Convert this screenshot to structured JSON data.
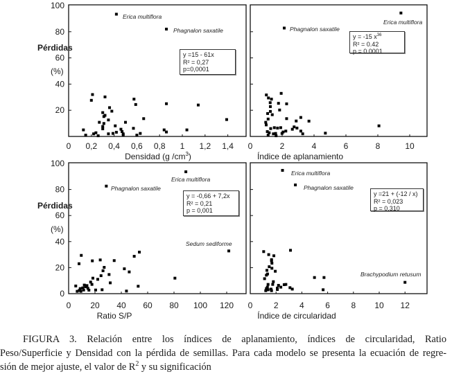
{
  "y_axis": {
    "title": "Pérdidas",
    "unit": "(%)"
  },
  "chart_data": [
    {
      "type": "scatter",
      "xlabel": "Densidad (g /cm",
      "xlabel_sup": "3",
      "xlabel_end": ")",
      "xticks": [
        "0",
        "0,2",
        "0,4",
        "0,6",
        "0,8",
        "1",
        "1,2",
        "1,4"
      ],
      "xtick_values": [
        0,
        0.2,
        0.4,
        0.6,
        0.8,
        1,
        1.2,
        1.4
      ],
      "yticks": [
        "20",
        "40",
        "60",
        "80",
        "100"
      ],
      "ylim": [
        0,
        100
      ],
      "equation": {
        "line1": "y =15 - 61x",
        "exp": "",
        "r2": "R² = 0,27",
        "p": "p=0,0001"
      },
      "annotations": [
        "Erica multiflora",
        "Phagnalon saxatile"
      ],
      "points": [
        [
          0.42,
          93.4
        ],
        [
          0.86,
          82
        ],
        [
          0.21,
          32
        ],
        [
          0.32,
          30.2
        ],
        [
          0.2,
          27.6
        ],
        [
          0.575,
          28.5
        ],
        [
          0.59,
          24.4
        ],
        [
          0.86,
          25
        ],
        [
          1.14,
          24
        ],
        [
          1.39,
          12.9
        ],
        [
          0.36,
          22
        ],
        [
          0.38,
          19.3
        ],
        [
          0.3,
          18.2
        ],
        [
          0.32,
          16.1
        ],
        [
          0.31,
          15.2
        ],
        [
          0.27,
          10.8
        ],
        [
          0.31,
          9.9
        ],
        [
          0.35,
          12.6
        ],
        [
          0.41,
          8.1
        ],
        [
          0.3,
          7.6
        ],
        [
          0.3,
          5.8
        ],
        [
          0.13,
          5
        ],
        [
          0.5,
          10.8
        ],
        [
          0.66,
          13.6
        ],
        [
          0.57,
          6.2
        ],
        [
          0.46,
          5.5
        ],
        [
          0.47,
          3.7
        ],
        [
          0.48,
          2
        ],
        [
          0.84,
          5
        ],
        [
          0.86,
          3.4
        ],
        [
          1.04,
          5
        ],
        [
          0.42,
          3.2
        ],
        [
          0.39,
          2.3
        ],
        [
          0.35,
          2
        ],
        [
          0.24,
          2.8
        ],
        [
          0.22,
          2
        ],
        [
          0.15,
          1
        ],
        [
          0.26,
          0.5
        ],
        [
          0.48,
          1
        ],
        [
          0.63,
          2.3
        ],
        [
          0.6,
          1
        ]
      ]
    },
    {
      "type": "scatter",
      "xlabel": "Índice de aplanamiento",
      "xlabel_sup": "",
      "xlabel_end": "",
      "xticks": [
        "0",
        "2",
        "4",
        "6",
        "8",
        "10"
      ],
      "xtick_values": [
        0,
        2,
        4,
        6,
        8,
        10
      ],
      "yticks": [],
      "ylim": [
        0,
        100
      ],
      "equation": {
        "line1": "y = -15 x",
        "exp": "36",
        "r2": "R² = 0.42",
        "p": "p = 0.0001"
      },
      "annotations": [
        "Phagnalon saxatile",
        "Erica multiflora"
      ],
      "points": [
        [
          9.45,
          94.3
        ],
        [
          2.13,
          82.8
        ],
        [
          1.01,
          31.7
        ],
        [
          1.14,
          29.4
        ],
        [
          1.33,
          28.5
        ],
        [
          1.94,
          32.9
        ],
        [
          1.25,
          25.8
        ],
        [
          1.77,
          25.3
        ],
        [
          2.28,
          24.9
        ],
        [
          1.26,
          22.8
        ],
        [
          1.84,
          20.2
        ],
        [
          1.26,
          19.1
        ],
        [
          1.09,
          17.5
        ],
        [
          1.38,
          16.6
        ],
        [
          1.12,
          13.3
        ],
        [
          2.28,
          13.6
        ],
        [
          3.17,
          14.5
        ],
        [
          3.68,
          11.7
        ],
        [
          2.88,
          11.8
        ],
        [
          0.97,
          10.8
        ],
        [
          1.0,
          8.8
        ],
        [
          8.07,
          8.1
        ],
        [
          1.51,
          6.7
        ],
        [
          1.71,
          6.4
        ],
        [
          1.28,
          6
        ],
        [
          1.91,
          6.7
        ],
        [
          2.75,
          7.3
        ],
        [
          2.93,
          6.4
        ],
        [
          2.64,
          5.5
        ],
        [
          3.17,
          4.1
        ],
        [
          1.07,
          3.7
        ],
        [
          1.19,
          2.8
        ],
        [
          1.59,
          2.3
        ],
        [
          2.06,
          3.4
        ],
        [
          2.23,
          4.1
        ],
        [
          1.99,
          2.3
        ],
        [
          1.12,
          1
        ],
        [
          1.62,
          0.5
        ],
        [
          3.29,
          2
        ],
        [
          4.71,
          2.5
        ],
        [
          1.45,
          2
        ]
      ]
    },
    {
      "type": "scatter",
      "xlabel": "Ratio S/P",
      "xlabel_sup": "",
      "xlabel_end": "",
      "xticks": [
        "0",
        "20",
        "40",
        "60",
        "80",
        "100",
        "120"
      ],
      "xtick_values": [
        0,
        20,
        40,
        60,
        80,
        100,
        120
      ],
      "yticks": [
        "0",
        "20",
        "40",
        "60",
        "80",
        "100"
      ],
      "ylim": [
        0,
        100
      ],
      "equation": {
        "line1": "y = -0,66 + 7,2x",
        "exp": "",
        "r2": "R² = 0,21",
        "p": "p = 0,001"
      },
      "annotations": [
        "Erica multiflora",
        "Phagnalon saxatile",
        "Sedum  sediforme"
      ],
      "points": [
        [
          89,
          93.6
        ],
        [
          28.6,
          82.6
        ],
        [
          121.6,
          32.8
        ],
        [
          53.7,
          31.9
        ],
        [
          49.8,
          28.7
        ],
        [
          9.6,
          29.4
        ],
        [
          24,
          25.9
        ],
        [
          34.6,
          25.4
        ],
        [
          18,
          25.2
        ],
        [
          7.9,
          23
        ],
        [
          42.3,
          19.1
        ],
        [
          46,
          16.7
        ],
        [
          27,
          20.2
        ],
        [
          26.1,
          17.6
        ],
        [
          30.7,
          14.7
        ],
        [
          24.6,
          13.8
        ],
        [
          22.1,
          11
        ],
        [
          31.6,
          8.3
        ],
        [
          80.7,
          11.9
        ],
        [
          18.4,
          11.9
        ],
        [
          16.7,
          8.9
        ],
        [
          17.7,
          7.1
        ],
        [
          11.9,
          6.6
        ],
        [
          13.9,
          6.2
        ],
        [
          12.8,
          5.3
        ],
        [
          14.6,
          4.1
        ],
        [
          10.7,
          4.4
        ],
        [
          15.4,
          2.7
        ],
        [
          8.8,
          3.9
        ],
        [
          5.4,
          5.9
        ],
        [
          52.8,
          5.7
        ],
        [
          8.1,
          2.5
        ],
        [
          6.5,
          1.8
        ],
        [
          9.3,
          1.8
        ],
        [
          20.5,
          2.8
        ],
        [
          25.4,
          3
        ],
        [
          43.9,
          2
        ],
        [
          11.4,
          2.8
        ]
      ]
    },
    {
      "type": "scatter",
      "xlabel": "Índice de circularidad",
      "xlabel_sup": "",
      "xlabel_end": "",
      "xticks": [
        "0",
        "2",
        "4",
        "6",
        "8",
        "10",
        "12"
      ],
      "xtick_values": [
        0,
        2,
        4,
        6,
        8,
        10,
        12
      ],
      "yticks": [],
      "ylim": [
        0,
        100
      ],
      "equation": {
        "line1": "y =21 + (-12 / x)",
        "exp": "",
        "r2": "R² = 0,023",
        "p": "p = 0,310"
      },
      "annotations": [
        "Erica multiflora",
        "Phagnalon saxatile",
        "Brachypodium retusum"
      ],
      "points": [
        [
          2.5,
          94.7
        ],
        [
          3.5,
          83.5
        ],
        [
          1.04,
          32.3
        ],
        [
          3.12,
          33.3
        ],
        [
          1.43,
          30
        ],
        [
          1.83,
          29.1
        ],
        [
          1.65,
          26.1
        ],
        [
          1.65,
          25.2
        ],
        [
          1.68,
          23.4
        ],
        [
          1.47,
          20.7
        ],
        [
          1.68,
          19.5
        ],
        [
          1.29,
          17.9
        ],
        [
          1.94,
          17.2
        ],
        [
          1.34,
          15.1
        ],
        [
          1.25,
          14.2
        ],
        [
          1.11,
          11.5
        ],
        [
          4.98,
          12.4
        ],
        [
          5.72,
          12.4
        ],
        [
          12.0,
          8.7
        ],
        [
          1.79,
          9.2
        ],
        [
          1.38,
          7.1
        ],
        [
          1.74,
          7.1
        ],
        [
          2.19,
          6.4
        ],
        [
          2.63,
          6.9
        ],
        [
          2.76,
          7.1
        ],
        [
          2.37,
          5
        ],
        [
          1.33,
          5
        ],
        [
          3.08,
          4.6
        ],
        [
          3.26,
          3.5
        ],
        [
          2.1,
          4.3
        ],
        [
          2.1,
          3.2
        ],
        [
          1.25,
          3.9
        ],
        [
          1.38,
          3
        ],
        [
          1.65,
          2.3
        ],
        [
          1.2,
          2.3
        ],
        [
          5.65,
          3
        ],
        [
          1.61,
          3.5
        ]
      ]
    }
  ],
  "caption": {
    "line1": "FIGURA 3. Relación entre los índices de aplanamiento, índices de circularidad, Ratio",
    "line2": "Peso/Superficie y Densidad con la pérdida de semillas. Para cada modelo se presenta la ecuación de regre-",
    "line3a": "sión de mejor ajuste, el valor de R",
    "line3sup": "2",
    "line3b": " y su significación"
  }
}
